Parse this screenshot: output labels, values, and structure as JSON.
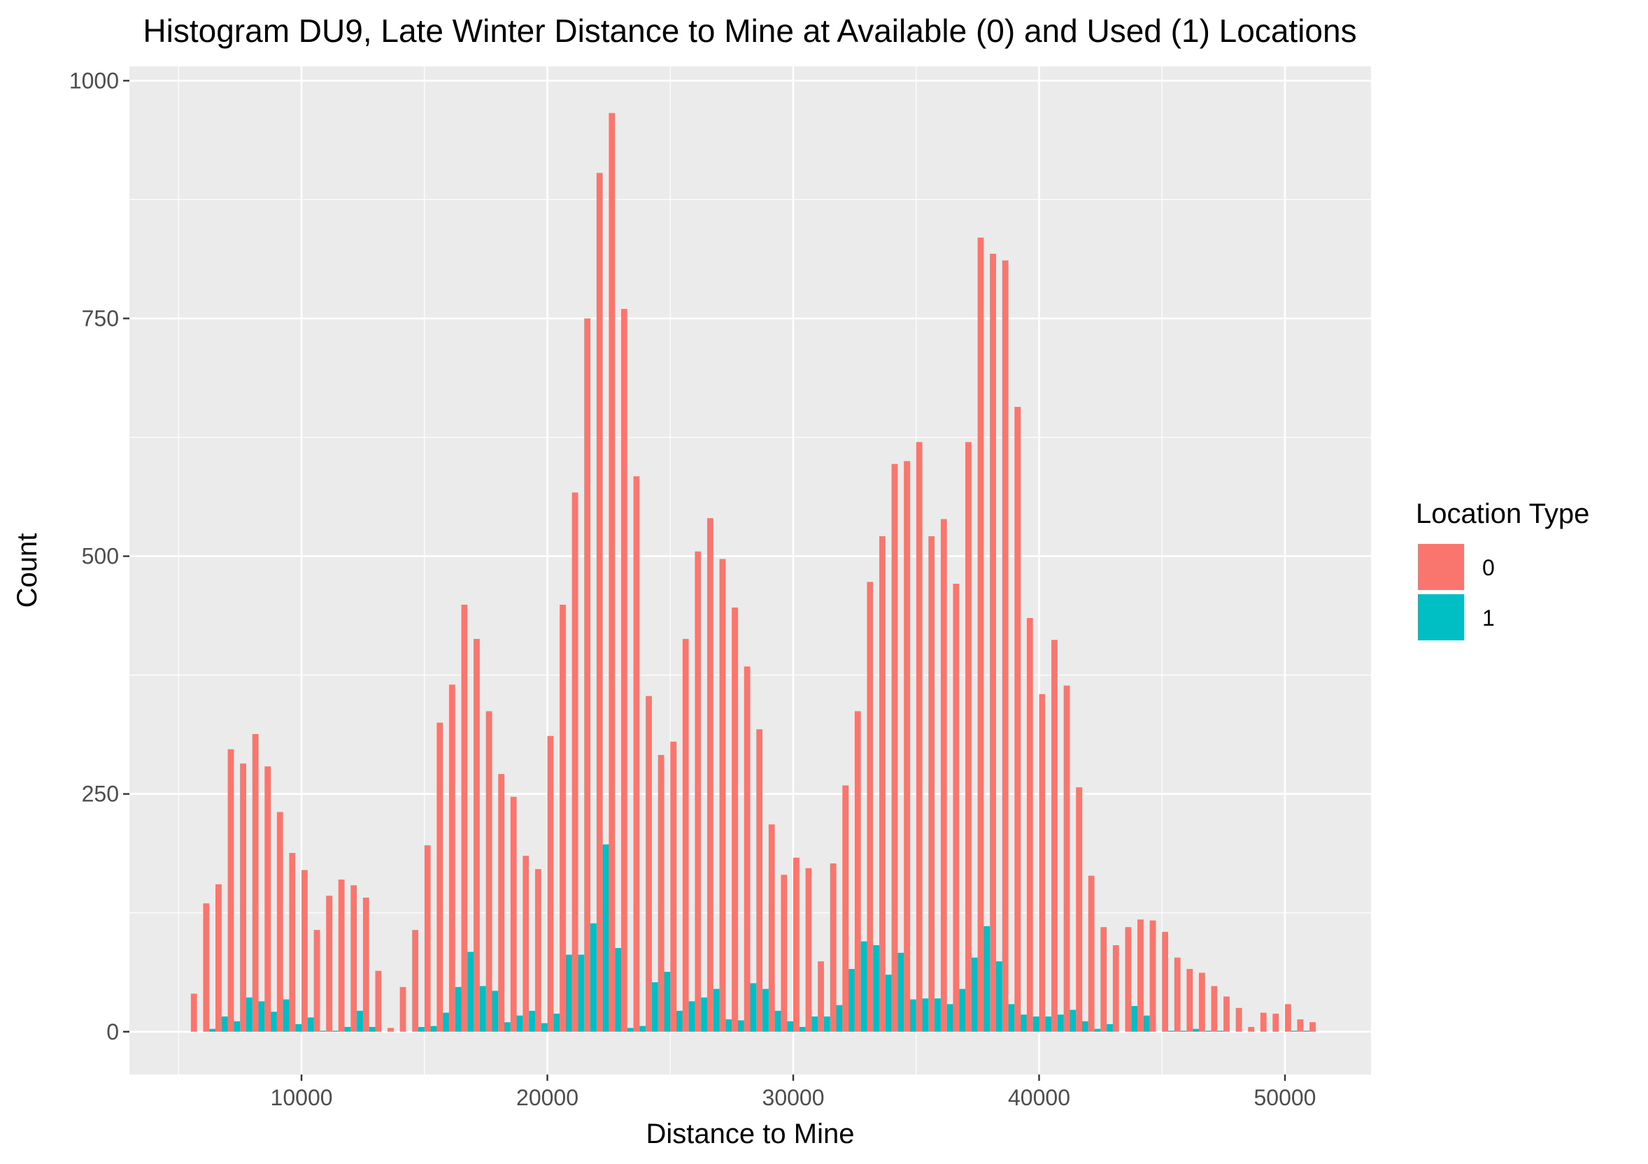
{
  "chart_data": {
    "type": "bar",
    "title": "Histogram DU9, Late Winter Distance to Mine at Available (0) and Used (1) Locations",
    "xlabel": "Distance to Mine",
    "ylabel": "Count",
    "xlim": [
      3000,
      53500
    ],
    "ylim": [
      -45,
      1015
    ],
    "xticks": [
      10000,
      20000,
      30000,
      40000,
      50000
    ],
    "yticks": [
      0,
      250,
      500,
      750,
      1000
    ],
    "grid": true,
    "legend": {
      "title": "Location Type",
      "position": "right"
    },
    "bin_start": 5500,
    "bin_width": 500,
    "series": [
      {
        "name": "0",
        "color": "#F8766D",
        "values": [
          40,
          135,
          155,
          297,
          282,
          313,
          279,
          231,
          188,
          170,
          107,
          143,
          160,
          154,
          141,
          64,
          4,
          47,
          107,
          196,
          325,
          365,
          449,
          413,
          337,
          271,
          247,
          185,
          171,
          311,
          449,
          567,
          750,
          903,
          966,
          760,
          584,
          353,
          291,
          305,
          413,
          505,
          540,
          497,
          446,
          384,
          318,
          218,
          165,
          183,
          172,
          74,
          177,
          259,
          337,
          473,
          521,
          597,
          600,
          620,
          521,
          539,
          471,
          620,
          835,
          818,
          811,
          657,
          435,
          355,
          412,
          364,
          257,
          164,
          110,
          91,
          110,
          118,
          117,
          105,
          78,
          66,
          62,
          48,
          37,
          25,
          5,
          20,
          19,
          29,
          13,
          10
        ]
      },
      {
        "name": "1",
        "color": "#00BFC4",
        "values": [
          0,
          3,
          16,
          11,
          36,
          32,
          21,
          34,
          8,
          15,
          1,
          1,
          5,
          22,
          5,
          0,
          0,
          0,
          5,
          6,
          20,
          47,
          84,
          48,
          43,
          10,
          17,
          22,
          9,
          19,
          81,
          81,
          114,
          197,
          88,
          4,
          6,
          52,
          63,
          22,
          32,
          36,
          45,
          13,
          12,
          51,
          45,
          22,
          11,
          5,
          16,
          16,
          28,
          66,
          95,
          91,
          60,
          83,
          34,
          35,
          35,
          29,
          45,
          78,
          111,
          74,
          29,
          18,
          16,
          16,
          18,
          23,
          11,
          3,
          8,
          0,
          27,
          17,
          0,
          1,
          1,
          3,
          1,
          1,
          0,
          0,
          0,
          0,
          0,
          1,
          1,
          0
        ]
      }
    ]
  }
}
